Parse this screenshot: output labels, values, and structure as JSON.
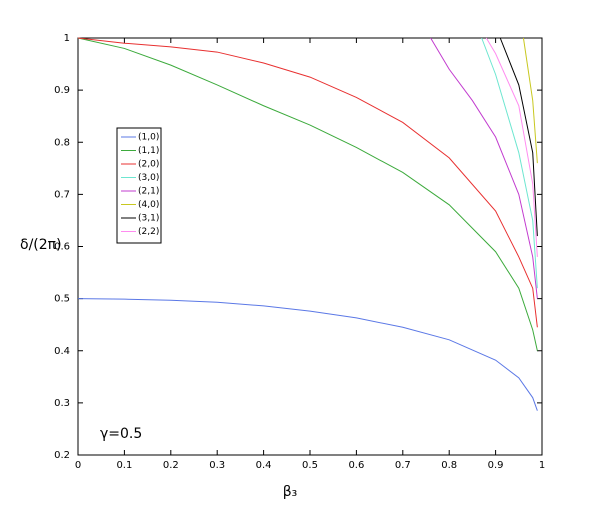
{
  "chart_data": {
    "type": "line",
    "xlabel": "β₃",
    "ylabel": "δ/(2π)",
    "annotation": "γ=0.5",
    "xlim": [
      0,
      1
    ],
    "ylim": [
      0.2,
      1
    ],
    "xticks": [
      0,
      0.1,
      0.2,
      0.3,
      0.4,
      0.5,
      0.6,
      0.7,
      0.8,
      0.9,
      1
    ],
    "yticks": [
      0.2,
      0.3,
      0.4,
      0.5,
      0.6,
      0.7,
      0.8,
      0.9,
      1
    ],
    "legend": "left",
    "series": [
      {
        "name": "(1,0)",
        "color": "#5b78e6",
        "x": [
          0,
          0.1,
          0.2,
          0.3,
          0.4,
          0.5,
          0.6,
          0.7,
          0.8,
          0.9,
          0.95,
          0.98,
          0.99
        ],
        "values": [
          0.5,
          0.499,
          0.497,
          0.493,
          0.486,
          0.476,
          0.463,
          0.445,
          0.421,
          0.382,
          0.348,
          0.31,
          0.285
        ]
      },
      {
        "name": "(1,1)",
        "color": "#3caa3c",
        "x": [
          0,
          0.1,
          0.2,
          0.3,
          0.4,
          0.5,
          0.6,
          0.7,
          0.8,
          0.9,
          0.95,
          0.98,
          0.99
        ],
        "values": [
          1,
          0.98,
          0.948,
          0.91,
          0.87,
          0.833,
          0.79,
          0.742,
          0.68,
          0.59,
          0.52,
          0.44,
          0.4
        ]
      },
      {
        "name": "(2,0)",
        "color": "#e83030",
        "x": [
          0,
          0.1,
          0.2,
          0.3,
          0.4,
          0.5,
          0.6,
          0.7,
          0.8,
          0.9,
          0.95,
          0.98,
          0.99
        ],
        "values": [
          1,
          0.99,
          0.983,
          0.973,
          0.952,
          0.925,
          0.886,
          0.838,
          0.77,
          0.668,
          0.58,
          0.52,
          0.445
        ]
      },
      {
        "name": "(3,0)",
        "color": "#6de6d0",
        "x": [
          0.87,
          0.9,
          0.95,
          0.98,
          0.99
        ],
        "values": [
          1,
          0.93,
          0.78,
          0.65,
          0.52
        ]
      },
      {
        "name": "(2,1)",
        "color": "#c23ccf",
        "x": [
          0.76,
          0.8,
          0.85,
          0.9,
          0.95,
          0.98,
          0.99
        ],
        "values": [
          1,
          0.94,
          0.88,
          0.81,
          0.7,
          0.58,
          0.5
        ]
      },
      {
        "name": "(4,0)",
        "color": "#c8c820",
        "x": [
          0.96,
          0.98,
          0.99
        ],
        "values": [
          1,
          0.88,
          0.76
        ]
      },
      {
        "name": "(3,1)",
        "color": "#000000",
        "x": [
          0.91,
          0.95,
          0.98,
          0.99
        ],
        "values": [
          1,
          0.91,
          0.78,
          0.62
        ]
      },
      {
        "name": "(2,2)",
        "color": "#ff8cf0",
        "x": [
          0.88,
          0.9,
          0.95,
          0.98,
          0.99
        ],
        "values": [
          1,
          0.97,
          0.87,
          0.72,
          0.58
        ]
      }
    ]
  }
}
